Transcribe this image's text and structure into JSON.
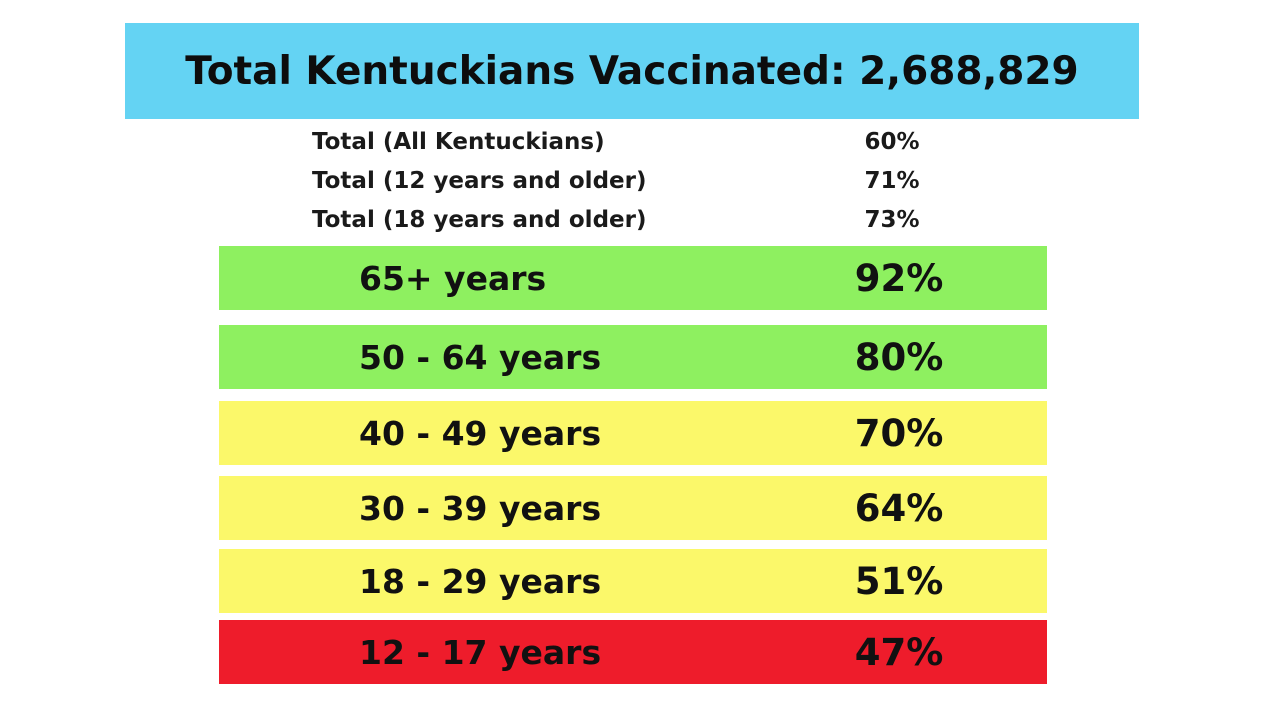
{
  "title": "Total Kentuckians Vaccinated: 2,688,829",
  "summary": [
    {
      "label": "Total (All Kentuckians)",
      "value": "60%"
    },
    {
      "label": "Total (12 years and older)",
      "value": "71%"
    },
    {
      "label": "Total (18 years and older)",
      "value": "73%"
    }
  ],
  "colors": {
    "banner": "#64d3f3",
    "high": "#8ef060",
    "medium": "#fbf86a",
    "low": "#ee1c2b"
  },
  "chart_data": {
    "type": "table",
    "title": "Total Kentuckians Vaccinated: 2,688,829",
    "rows": [
      {
        "label": "65+ years",
        "value": "92%",
        "percent": 92,
        "level": "high"
      },
      {
        "label": "50 - 64 years",
        "value": "80%",
        "percent": 80,
        "level": "high"
      },
      {
        "label": "40 - 49 years",
        "value": "70%",
        "percent": 70,
        "level": "medium"
      },
      {
        "label": "30 - 39 years",
        "value": "64%",
        "percent": 64,
        "level": "medium"
      },
      {
        "label": "18 - 29 years",
        "value": "51%",
        "percent": 51,
        "level": "medium"
      },
      {
        "label": "12 - 17 years",
        "value": "47%",
        "percent": 47,
        "level": "low"
      }
    ]
  }
}
